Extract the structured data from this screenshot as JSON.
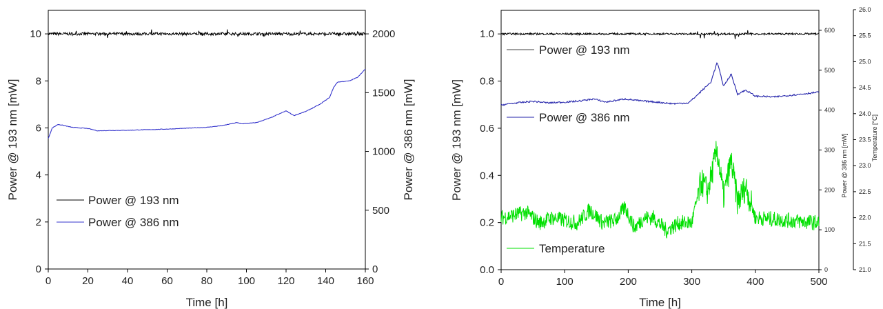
{
  "chart_data": [
    {
      "type": "line",
      "xlabel": "Time [h]",
      "ylabel": "Power @ 193 nm [mW]",
      "y2label": "Power @ 386 nm [mW]",
      "xlim": [
        0,
        160
      ],
      "ylim": [
        0,
        11
      ],
      "y2lim": [
        0,
        2200
      ],
      "xticks": [
        "0",
        "20",
        "40",
        "60",
        "80",
        "100",
        "120",
        "140",
        "160"
      ],
      "yticks": [
        "0",
        "2",
        "4",
        "6",
        "8",
        "10"
      ],
      "y2ticks": [
        "0",
        "500",
        "1000",
        "1500",
        "2000"
      ],
      "legend_position": "bottom-left",
      "series": [
        {
          "name": "Power @ 193 nm",
          "axis": "left",
          "color": "#000000",
          "x": [
            0,
            20,
            40,
            60,
            80,
            100,
            120,
            140,
            160
          ],
          "values": [
            10,
            10,
            10,
            10,
            10,
            10,
            10,
            10,
            10
          ]
        },
        {
          "name": "Power @ 386 nm",
          "axis": "right",
          "color": "#3333cc",
          "x": [
            0,
            2,
            5,
            8,
            12,
            20,
            25,
            30,
            40,
            60,
            80,
            88,
            95,
            98,
            105,
            112,
            118,
            120,
            124,
            130,
            137,
            142,
            144,
            146,
            152,
            156,
            160
          ],
          "values": [
            1110,
            1200,
            1230,
            1220,
            1205,
            1195,
            1175,
            1178,
            1180,
            1190,
            1205,
            1220,
            1245,
            1235,
            1245,
            1285,
            1330,
            1345,
            1305,
            1340,
            1400,
            1460,
            1545,
            1590,
            1600,
            1630,
            1700
          ]
        }
      ]
    },
    {
      "type": "line",
      "xlabel": "Time [h]",
      "ylabel": "Power @ 193 nm [mW]",
      "y2label": "Power @ 386 nm [mW]",
      "y3label": "Temperature [°C]",
      "xlim": [
        0,
        500
      ],
      "ylim": [
        0,
        1.1
      ],
      "y2lim": [
        0,
        650
      ],
      "y3lim": [
        21,
        26
      ],
      "xticks": [
        "0",
        "100",
        "200",
        "300",
        "400",
        "500"
      ],
      "yticks": [
        "0.0",
        "0.2",
        "0.4",
        "0.6",
        "0.8",
        "1.0"
      ],
      "y2ticks": [
        "0",
        "100",
        "200",
        "300",
        "400",
        "500",
        "600"
      ],
      "y3ticks": [
        "21.0",
        "21.5",
        "22.0",
        "22.5",
        "23.0",
        "23.5",
        "24.0",
        "24.5",
        "25.0",
        "25.5",
        "26.0"
      ],
      "legend_position": "left, stacked",
      "series": [
        {
          "name": "Power @ 193 nm",
          "axis": "left",
          "color": "#000000",
          "x": [
            0,
            100,
            200,
            300,
            400,
            500
          ],
          "values": [
            1.0,
            1.0,
            1.0,
            1.0,
            1.0,
            1.0
          ]
        },
        {
          "name": "Power @ 386 nm",
          "axis": "right",
          "color": "#2222aa",
          "x": [
            0,
            25,
            50,
            75,
            100,
            125,
            145,
            165,
            195,
            220,
            245,
            270,
            295,
            310,
            320,
            330,
            340,
            350,
            362,
            372,
            385,
            400,
            430,
            460,
            500
          ],
          "values": [
            413,
            418,
            422,
            418,
            420,
            423,
            428,
            420,
            428,
            423,
            420,
            416,
            418,
            440,
            455,
            470,
            520,
            460,
            490,
            440,
            450,
            435,
            433,
            438,
            445
          ]
        },
        {
          "name": "Temperature",
          "axis": "right2",
          "color": "#00e000",
          "x": [
            0,
            20,
            40,
            60,
            80,
            100,
            120,
            140,
            160,
            180,
            195,
            210,
            225,
            240,
            260,
            280,
            300,
            315,
            325,
            340,
            350,
            362,
            372,
            385,
            400,
            450,
            500
          ],
          "values": [
            22.0,
            22.05,
            22.1,
            21.9,
            22.0,
            21.95,
            21.9,
            22.15,
            21.9,
            21.95,
            22.2,
            21.8,
            22.0,
            22.0,
            21.75,
            21.9,
            21.9,
            22.7,
            22.5,
            23.3,
            22.4,
            23.1,
            22.3,
            22.6,
            22.0,
            21.95,
            21.9
          ]
        }
      ]
    }
  ]
}
